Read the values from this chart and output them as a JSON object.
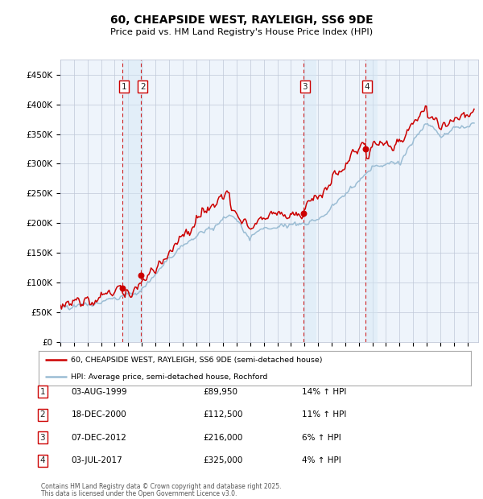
{
  "title": "60, CHEAPSIDE WEST, RAYLEIGH, SS6 9DE",
  "subtitle": "Price paid vs. HM Land Registry's House Price Index (HPI)",
  "legend_line1": "60, CHEAPSIDE WEST, RAYLEIGH, SS6 9DE (semi-detached house)",
  "legend_line2": "HPI: Average price, semi-detached house, Rochford",
  "footnote1": "Contains HM Land Registry data © Crown copyright and database right 2025.",
  "footnote2": "This data is licensed under the Open Government Licence v3.0.",
  "transactions": [
    {
      "num": 1,
      "date": "03-AUG-1999",
      "price": "£89,950",
      "hpi": "14% ↑ HPI",
      "year": 1999.58,
      "price_val": 89950
    },
    {
      "num": 2,
      "date": "18-DEC-2000",
      "price": "£112,500",
      "hpi": "11% ↑ HPI",
      "year": 2000.96,
      "price_val": 112500
    },
    {
      "num": 3,
      "date": "07-DEC-2012",
      "price": "£216,000",
      "hpi": "6% ↑ HPI",
      "year": 2012.93,
      "price_val": 216000
    },
    {
      "num": 4,
      "date": "03-JUL-2017",
      "price": "£325,000",
      "hpi": "4% ↑ HPI",
      "year": 2017.5,
      "price_val": 325000
    }
  ],
  "ylim": [
    0,
    475000
  ],
  "yticks": [
    0,
    50000,
    100000,
    150000,
    200000,
    250000,
    300000,
    350000,
    400000,
    450000
  ],
  "ytick_labels": [
    "£0",
    "£50K",
    "£100K",
    "£150K",
    "£200K",
    "£250K",
    "£300K",
    "£350K",
    "£400K",
    "£450K"
  ],
  "hpi_color": "#9bbdd4",
  "price_color": "#cc0000",
  "shade_color": "#d5e8f5",
  "vline_color": "#cc0000",
  "plot_bg_color": "#eef4fb",
  "background_color": "#ffffff",
  "grid_color": "#c0c8d8"
}
